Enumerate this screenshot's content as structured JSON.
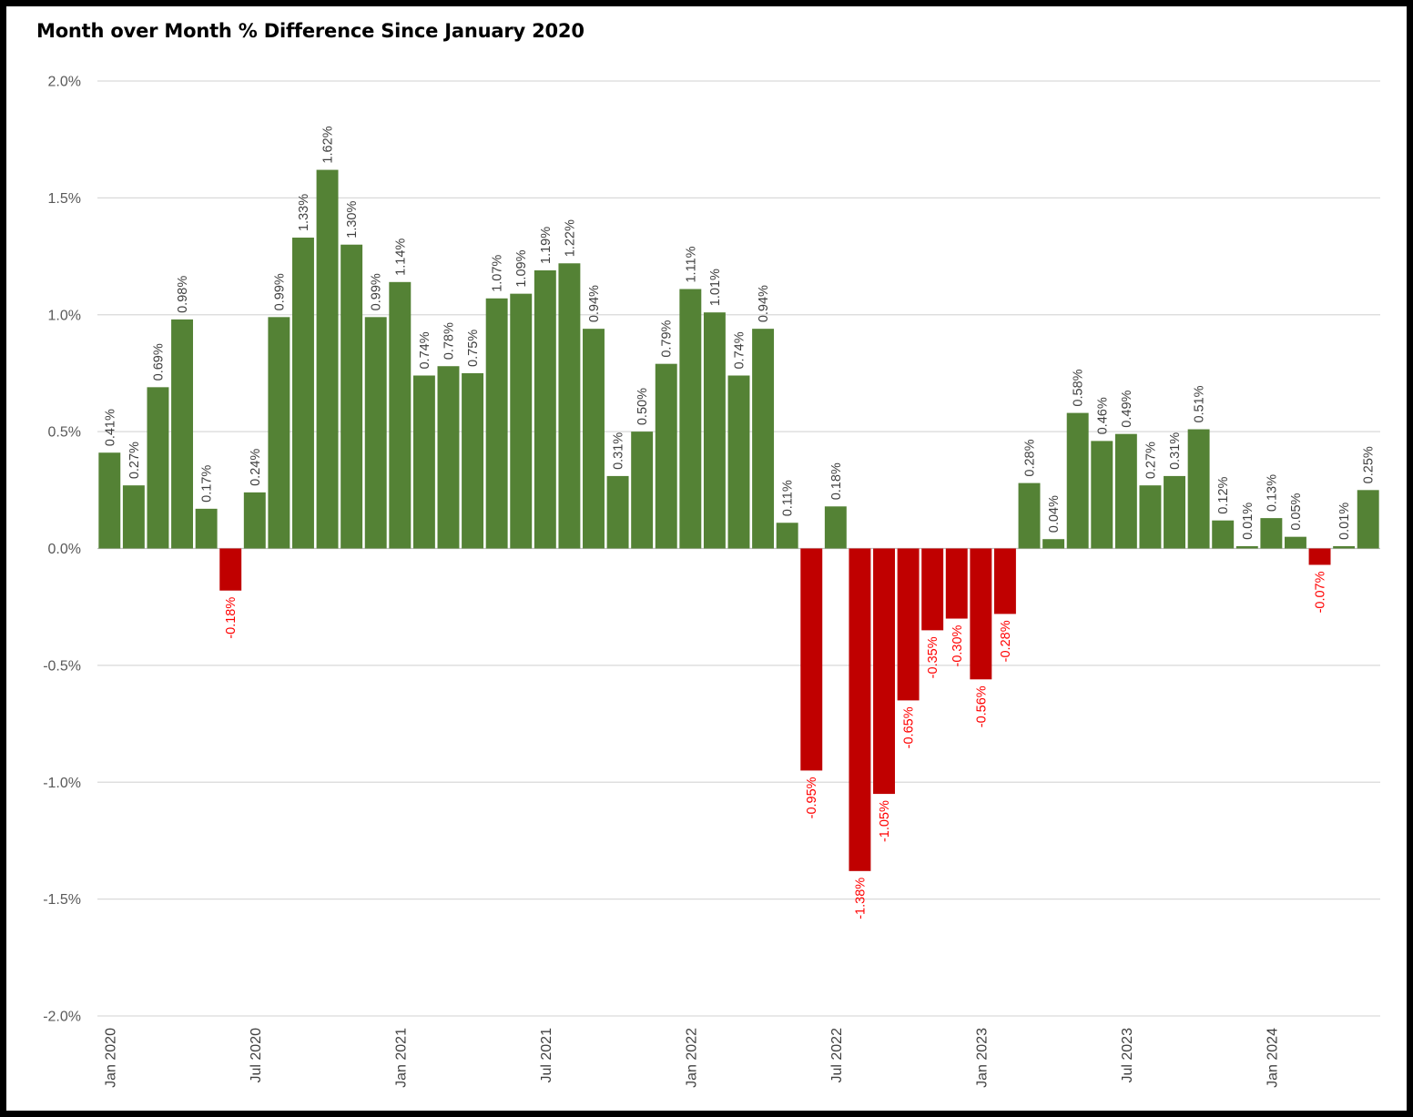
{
  "chart_data": {
    "type": "bar",
    "title": "Month over Month % Difference Since January 2020",
    "xlabel": "",
    "ylabel": "",
    "ylim": [
      -2.0,
      2.0
    ],
    "yticks": [
      2.0,
      1.5,
      1.0,
      0.5,
      0.0,
      -0.5,
      -1.0,
      -1.5,
      -2.0
    ],
    "ytick_labels": [
      "2.0%",
      "1.5%",
      "1.0%",
      "0.5%",
      "0.0%",
      "-0.5%",
      "-1.0%",
      "-1.5%",
      "-2.0%"
    ],
    "grid": true,
    "legend": "none",
    "xticks": [
      {
        "index": 0,
        "label": "Jan 2020"
      },
      {
        "index": 6,
        "label": "Jul 2020"
      },
      {
        "index": 12,
        "label": "Jan 2021"
      },
      {
        "index": 18,
        "label": "Jul 2021"
      },
      {
        "index": 24,
        "label": "Jan 2022"
      },
      {
        "index": 30,
        "label": "Jul 2022"
      },
      {
        "index": 36,
        "label": "Jan 2023"
      },
      {
        "index": 42,
        "label": "Jul 2023"
      },
      {
        "index": 48,
        "label": "Jan 2024"
      }
    ],
    "categories": [
      "Jan 2020",
      "Feb 2020",
      "Mar 2020",
      "Apr 2020",
      "May 2020",
      "Jun 2020",
      "Jul 2020",
      "Aug 2020",
      "Sep 2020",
      "Oct 2020",
      "Nov 2020",
      "Dec 2020",
      "Jan 2021",
      "Feb 2021",
      "Mar 2021",
      "Apr 2021",
      "May 2021",
      "Jun 2021",
      "Jul 2021",
      "Aug 2021",
      "Sep 2021",
      "Oct 2021",
      "Nov 2021",
      "Dec 2021",
      "Jan 2022",
      "Feb 2022",
      "Mar 2022",
      "Apr 2022",
      "May 2022",
      "Jun 2022",
      "Jul 2022",
      "Aug 2022",
      "Sep 2022",
      "Oct 2022",
      "Nov 2022",
      "Dec 2022",
      "Jan 2023",
      "Feb 2023",
      "Mar 2023",
      "Apr 2023",
      "May 2023",
      "Jun 2023",
      "Jul 2023",
      "Aug 2023",
      "Sep 2023",
      "Oct 2023",
      "Nov 2023",
      "Dec 2023",
      "Jan 2024",
      "Feb 2024",
      "Mar 2024",
      "Apr 2024",
      "May 2024"
    ],
    "values": [
      0.41,
      0.27,
      0.69,
      0.98,
      0.17,
      -0.18,
      0.24,
      0.99,
      1.33,
      1.62,
      1.3,
      0.99,
      1.14,
      0.74,
      0.78,
      0.75,
      1.07,
      1.09,
      1.19,
      1.22,
      0.94,
      0.31,
      0.5,
      0.79,
      1.11,
      1.01,
      0.74,
      0.94,
      0.11,
      -0.95,
      0.18,
      -1.38,
      -1.05,
      -0.65,
      -0.35,
      -0.3,
      -0.56,
      -0.28,
      0.28,
      0.04,
      0.58,
      0.46,
      0.49,
      0.27,
      0.31,
      0.51,
      0.12,
      0.01,
      0.13,
      0.05,
      -0.07,
      0.01,
      0.25
    ],
    "data_labels": [
      "0.41%",
      "0.27%",
      "0.69%",
      "0.98%",
      "0.17%",
      "-0.18%",
      "0.24%",
      "0.99%",
      "1.33%",
      "1.62%",
      "1.30%",
      "0.99%",
      "1.14%",
      "0.74%",
      "0.78%",
      "0.75%",
      "1.07%",
      "1.09%",
      "1.19%",
      "1.22%",
      "0.94%",
      "0.31%",
      "0.50%",
      "0.79%",
      "1.11%",
      "1.01%",
      "0.74%",
      "0.94%",
      "0.11%",
      "-0.95%",
      "0.18%",
      "-1.38%",
      "-1.05%",
      "-0.65%",
      "-0.35%",
      "-0.30%",
      "-0.56%",
      "-0.28%",
      "0.28%",
      "0.04%",
      "0.58%",
      "0.46%",
      "0.49%",
      "0.27%",
      "0.31%",
      "0.51%",
      "0.12%",
      "0.01%",
      "0.13%",
      "0.05%",
      "-0.07%",
      "0.01%",
      "0.25%"
    ],
    "colors": {
      "positive": "#548235",
      "negative": "#C00000",
      "positive_label": "#404040",
      "negative_label": "#FF0000",
      "grid": "#D9D9D9",
      "axis": "#BFBFBF"
    }
  }
}
